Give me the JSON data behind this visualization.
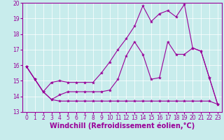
{
  "background_color": "#c8ecec",
  "plot_bg_color": "#c8ecec",
  "line_color": "#990099",
  "xlabel": "Windchill (Refroidissement éolien,°C)",
  "xlabel_fontsize": 7,
  "tick_fontsize": 5.5,
  "xlim": [
    -0.5,
    23.5
  ],
  "ylim": [
    13,
    20
  ],
  "yticks": [
    13,
    14,
    15,
    16,
    17,
    18,
    19,
    20
  ],
  "xticks": [
    0,
    1,
    2,
    3,
    4,
    5,
    6,
    7,
    8,
    9,
    10,
    11,
    12,
    13,
    14,
    15,
    16,
    17,
    18,
    19,
    20,
    21,
    22,
    23
  ],
  "series1_x": [
    0,
    1,
    2,
    3,
    4,
    5,
    6,
    7,
    8,
    9,
    10,
    11,
    12,
    13,
    14,
    15,
    16,
    17,
    18,
    19,
    20,
    21,
    22,
    23
  ],
  "series1_y": [
    15.9,
    15.1,
    14.3,
    13.8,
    14.1,
    14.3,
    14.3,
    14.3,
    14.3,
    14.3,
    14.4,
    15.1,
    16.6,
    17.5,
    16.7,
    15.1,
    15.2,
    17.5,
    16.7,
    16.7,
    17.1,
    16.9,
    15.2,
    13.5
  ],
  "series2_x": [
    0,
    1,
    2,
    3,
    4,
    5,
    6,
    7,
    8,
    9,
    10,
    11,
    12,
    13,
    14,
    15,
    16,
    17,
    18,
    19,
    20,
    21,
    22,
    23
  ],
  "series2_y": [
    15.9,
    15.1,
    14.3,
    13.8,
    13.7,
    13.7,
    13.7,
    13.7,
    13.7,
    13.7,
    13.7,
    13.7,
    13.7,
    13.7,
    13.7,
    13.7,
    13.7,
    13.7,
    13.7,
    13.7,
    13.7,
    13.7,
    13.7,
    13.5
  ],
  "series3_x": [
    0,
    1,
    2,
    3,
    4,
    5,
    6,
    7,
    8,
    9,
    10,
    11,
    12,
    13,
    14,
    15,
    16,
    17,
    18,
    19,
    20,
    21,
    22,
    23
  ],
  "series3_y": [
    15.9,
    15.1,
    14.3,
    14.9,
    15.0,
    14.9,
    14.9,
    14.9,
    14.9,
    15.5,
    16.2,
    17.0,
    17.7,
    18.5,
    19.8,
    18.8,
    19.3,
    19.5,
    19.1,
    19.9,
    17.1,
    16.9,
    15.2,
    13.5
  ],
  "figwidth": 3.2,
  "figheight": 2.0,
  "dpi": 100
}
